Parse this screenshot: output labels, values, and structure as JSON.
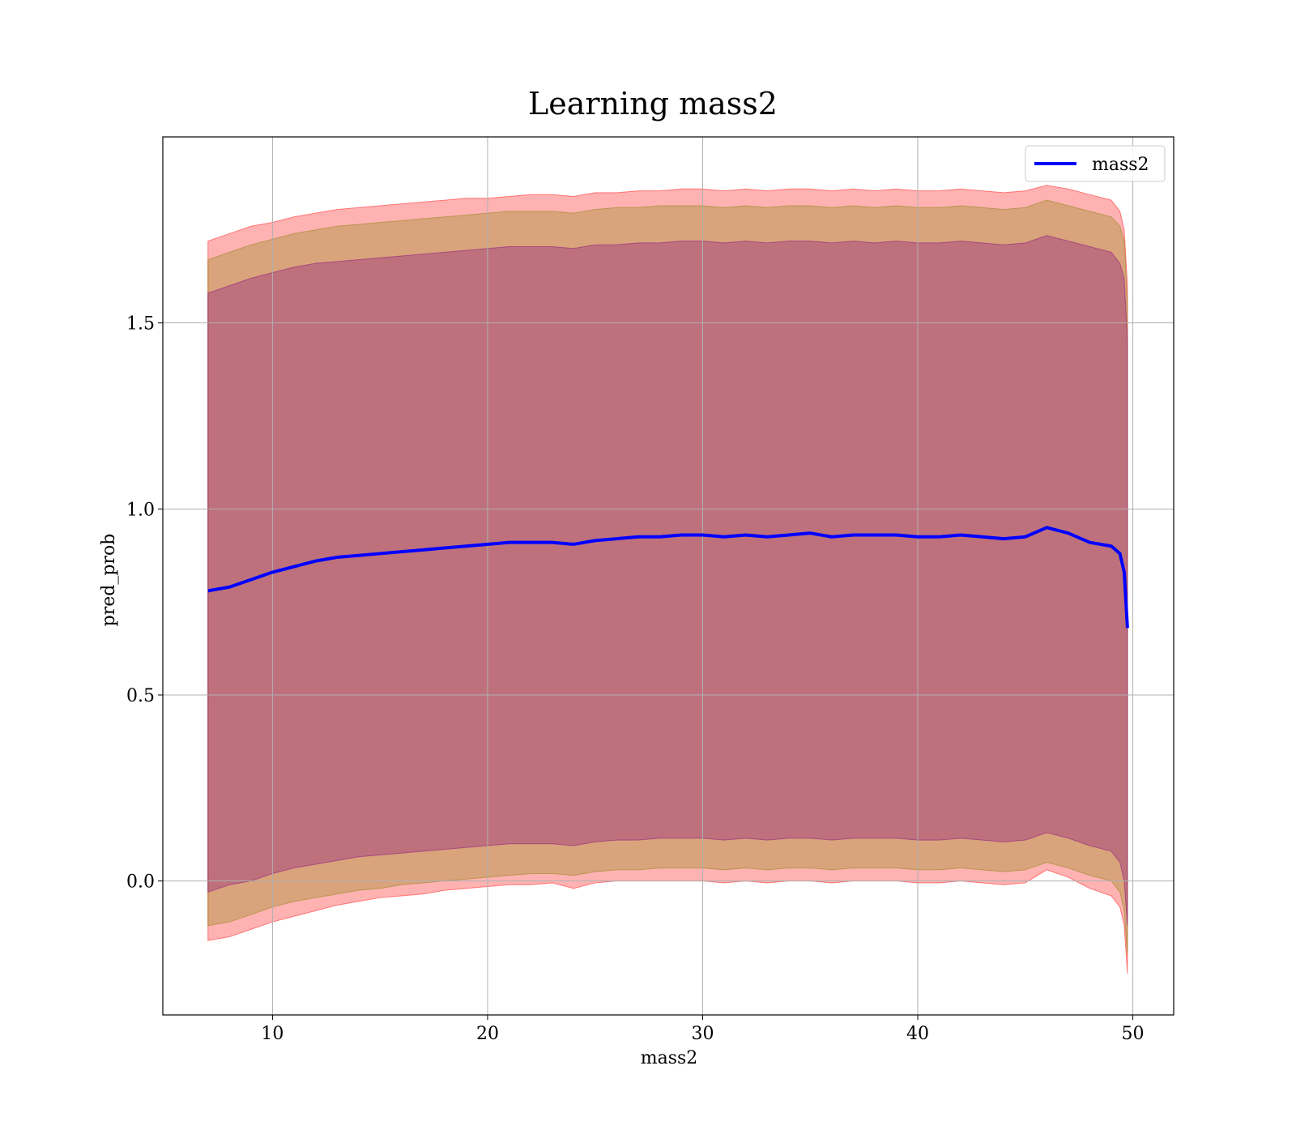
{
  "chart_data": {
    "type": "line",
    "title": "Learning mass2",
    "xlabel": "mass2",
    "ylabel": "pred_prob",
    "xlim": [
      4.9,
      51.9
    ],
    "ylim": [
      -0.36,
      2.0
    ],
    "xticks": [
      10,
      20,
      30,
      40,
      50
    ],
    "xtick_labels": [
      "10",
      "20",
      "30",
      "40",
      "50"
    ],
    "yticks": [
      0.0,
      0.5,
      1.0,
      1.5
    ],
    "ytick_labels": [
      "0.0",
      "0.5",
      "1.0",
      "1.5"
    ],
    "grid": true,
    "legend": {
      "position": "top-right",
      "entries": [
        "mass2"
      ]
    },
    "series": [
      {
        "name": "mass2",
        "color": "#0000ff",
        "x": [
          7.0,
          8.0,
          9.0,
          10.0,
          11.0,
          12.0,
          13.0,
          14.0,
          15.0,
          16.0,
          17.0,
          18.0,
          19.0,
          20.0,
          21.0,
          22.0,
          23.0,
          24.0,
          25.0,
          26.0,
          27.0,
          28.0,
          29.0,
          30.0,
          31.0,
          32.0,
          33.0,
          34.0,
          35.0,
          36.0,
          37.0,
          38.0,
          39.0,
          40.0,
          41.0,
          42.0,
          43.0,
          44.0,
          45.0,
          46.0,
          47.0,
          48.0,
          49.0,
          49.4,
          49.6,
          49.75
        ],
        "y": [
          0.78,
          0.79,
          0.81,
          0.83,
          0.845,
          0.86,
          0.87,
          0.875,
          0.88,
          0.885,
          0.89,
          0.895,
          0.9,
          0.905,
          0.91,
          0.91,
          0.91,
          0.905,
          0.915,
          0.92,
          0.925,
          0.925,
          0.93,
          0.93,
          0.925,
          0.93,
          0.925,
          0.93,
          0.935,
          0.925,
          0.93,
          0.93,
          0.93,
          0.925,
          0.925,
          0.93,
          0.925,
          0.92,
          0.925,
          0.95,
          0.935,
          0.91,
          0.9,
          0.88,
          0.83,
          0.68
        ]
      }
    ],
    "bands": [
      {
        "color": "#ff0000",
        "opacity": 0.3,
        "x": [
          7.0,
          8.0,
          9.0,
          10.0,
          11.0,
          12.0,
          13.0,
          14.0,
          15.0,
          16.0,
          17.0,
          18.0,
          19.0,
          20.0,
          21.0,
          22.0,
          23.0,
          24.0,
          25.0,
          26.0,
          27.0,
          28.0,
          29.0,
          30.0,
          31.0,
          32.0,
          33.0,
          34.0,
          35.0,
          36.0,
          37.0,
          38.0,
          39.0,
          40.0,
          41.0,
          42.0,
          43.0,
          44.0,
          45.0,
          46.0,
          47.0,
          48.0,
          49.0,
          49.4,
          49.6,
          49.75
        ],
        "upper": [
          1.72,
          1.74,
          1.76,
          1.77,
          1.785,
          1.795,
          1.805,
          1.81,
          1.815,
          1.82,
          1.825,
          1.83,
          1.835,
          1.835,
          1.84,
          1.845,
          1.845,
          1.84,
          1.85,
          1.85,
          1.855,
          1.855,
          1.86,
          1.86,
          1.855,
          1.86,
          1.855,
          1.86,
          1.86,
          1.855,
          1.86,
          1.855,
          1.86,
          1.855,
          1.855,
          1.86,
          1.855,
          1.85,
          1.855,
          1.87,
          1.86,
          1.845,
          1.83,
          1.8,
          1.75,
          1.6
        ],
        "lower": [
          -0.16,
          -0.15,
          -0.13,
          -0.11,
          -0.095,
          -0.08,
          -0.065,
          -0.055,
          -0.045,
          -0.04,
          -0.035,
          -0.025,
          -0.02,
          -0.015,
          -0.01,
          -0.01,
          -0.005,
          -0.02,
          -0.005,
          0.0,
          0.0,
          0.0,
          0.0,
          0.0,
          -0.005,
          0.0,
          -0.005,
          0.0,
          0.0,
          -0.005,
          0.0,
          0.0,
          0.0,
          -0.005,
          -0.005,
          0.0,
          -0.005,
          -0.01,
          -0.005,
          0.03,
          0.01,
          -0.02,
          -0.04,
          -0.07,
          -0.12,
          -0.25
        ]
      },
      {
        "color": "#808000",
        "opacity": 0.3,
        "x": [
          7.0,
          8.0,
          9.0,
          10.0,
          11.0,
          12.0,
          13.0,
          14.0,
          15.0,
          16.0,
          17.0,
          18.0,
          19.0,
          20.0,
          21.0,
          22.0,
          23.0,
          24.0,
          25.0,
          26.0,
          27.0,
          28.0,
          29.0,
          30.0,
          31.0,
          32.0,
          33.0,
          34.0,
          35.0,
          36.0,
          37.0,
          38.0,
          39.0,
          40.0,
          41.0,
          42.0,
          43.0,
          44.0,
          45.0,
          46.0,
          47.0,
          48.0,
          49.0,
          49.4,
          49.6,
          49.75
        ],
        "upper": [
          1.67,
          1.69,
          1.71,
          1.725,
          1.74,
          1.75,
          1.76,
          1.765,
          1.77,
          1.775,
          1.78,
          1.785,
          1.79,
          1.795,
          1.8,
          1.8,
          1.8,
          1.795,
          1.805,
          1.81,
          1.81,
          1.815,
          1.815,
          1.815,
          1.81,
          1.815,
          1.81,
          1.815,
          1.815,
          1.81,
          1.815,
          1.81,
          1.815,
          1.81,
          1.81,
          1.815,
          1.81,
          1.805,
          1.81,
          1.83,
          1.815,
          1.8,
          1.785,
          1.76,
          1.72,
          1.55
        ],
        "lower": [
          -0.12,
          -0.11,
          -0.09,
          -0.07,
          -0.055,
          -0.045,
          -0.035,
          -0.025,
          -0.02,
          -0.01,
          -0.005,
          0.0,
          0.005,
          0.01,
          0.015,
          0.02,
          0.02,
          0.015,
          0.025,
          0.03,
          0.03,
          0.035,
          0.035,
          0.035,
          0.03,
          0.035,
          0.03,
          0.035,
          0.035,
          0.03,
          0.035,
          0.035,
          0.035,
          0.03,
          0.03,
          0.035,
          0.03,
          0.025,
          0.03,
          0.05,
          0.035,
          0.015,
          0.0,
          -0.03,
          -0.08,
          -0.2
        ]
      },
      {
        "color": "#800080",
        "opacity": 0.3,
        "x": [
          7.0,
          8.0,
          9.0,
          10.0,
          11.0,
          12.0,
          13.0,
          14.0,
          15.0,
          16.0,
          17.0,
          18.0,
          19.0,
          20.0,
          21.0,
          22.0,
          23.0,
          24.0,
          25.0,
          26.0,
          27.0,
          28.0,
          29.0,
          30.0,
          31.0,
          32.0,
          33.0,
          34.0,
          35.0,
          36.0,
          37.0,
          38.0,
          39.0,
          40.0,
          41.0,
          42.0,
          43.0,
          44.0,
          45.0,
          46.0,
          47.0,
          48.0,
          49.0,
          49.4,
          49.6,
          49.75
        ],
        "upper": [
          1.58,
          1.6,
          1.62,
          1.635,
          1.65,
          1.66,
          1.665,
          1.67,
          1.675,
          1.68,
          1.685,
          1.69,
          1.695,
          1.7,
          1.705,
          1.705,
          1.705,
          1.7,
          1.71,
          1.71,
          1.715,
          1.715,
          1.72,
          1.72,
          1.715,
          1.72,
          1.715,
          1.72,
          1.72,
          1.715,
          1.72,
          1.715,
          1.72,
          1.715,
          1.715,
          1.72,
          1.715,
          1.71,
          1.715,
          1.735,
          1.72,
          1.705,
          1.69,
          1.66,
          1.62,
          1.45
        ],
        "lower": [
          -0.03,
          -0.01,
          0.0,
          0.02,
          0.035,
          0.045,
          0.055,
          0.065,
          0.07,
          0.075,
          0.08,
          0.085,
          0.09,
          0.095,
          0.1,
          0.1,
          0.1,
          0.095,
          0.105,
          0.11,
          0.11,
          0.115,
          0.115,
          0.115,
          0.11,
          0.115,
          0.11,
          0.115,
          0.115,
          0.11,
          0.115,
          0.115,
          0.115,
          0.11,
          0.11,
          0.115,
          0.11,
          0.105,
          0.11,
          0.13,
          0.115,
          0.095,
          0.08,
          0.05,
          0.0,
          -0.12
        ]
      }
    ]
  }
}
